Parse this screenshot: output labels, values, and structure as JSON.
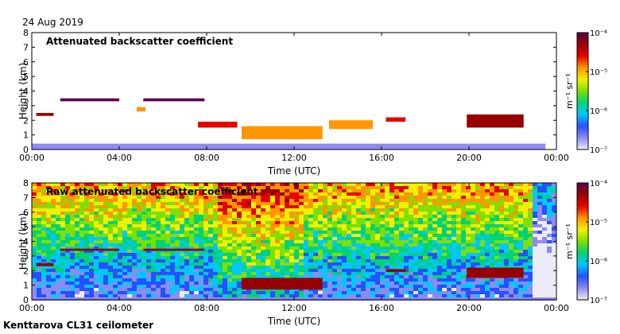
{
  "date_label": "24 Aug 2019",
  "site_label": "Kenttarova CL31 ceilometer",
  "colorbar": {
    "unit_label": "m⁻¹ sr⁻¹",
    "ticks": [
      "10⁻⁷",
      "10⁻⁶",
      "10⁻⁵",
      "10⁻⁴"
    ],
    "colors": [
      "#ececf8",
      "#8c8cf0",
      "#2850ff",
      "#00c8ff",
      "#00d278",
      "#7ee000",
      "#f0f000",
      "#ff9600",
      "#e60000",
      "#960000",
      "#5a0050"
    ]
  },
  "chart_data": [
    {
      "type": "heatmap",
      "title": "Attenuated backscatter coefficient",
      "xlabel": "Time (UTC)",
      "ylabel": "Height (km)",
      "xlim": [
        0,
        24
      ],
      "ylim": [
        0,
        8
      ],
      "x_ticks": [
        "00:00",
        "04:00",
        "08:00",
        "12:00",
        "16:00",
        "20:00",
        "00:00"
      ],
      "y_ticks": [
        "0",
        "1",
        "2",
        "3",
        "4",
        "5",
        "6",
        "7",
        "8"
      ],
      "features": [
        {
          "name": "surface layer",
          "t": [
            0,
            23.5
          ],
          "h": [
            0,
            0.4
          ],
          "level": 0.15
        },
        {
          "name": "cloud layer",
          "t": [
            0.2,
            1.0
          ],
          "h": [
            2.3,
            2.5
          ],
          "level": 0.85
        },
        {
          "name": "cloud layer",
          "t": [
            1.3,
            4.0
          ],
          "h": [
            3.3,
            3.5
          ],
          "level": 0.95
        },
        {
          "name": "cloud layer",
          "t": [
            5.1,
            7.9
          ],
          "h": [
            3.3,
            3.5
          ],
          "level": 0.95
        },
        {
          "name": "cloud layer",
          "t": [
            4.8,
            5.2
          ],
          "h": [
            2.6,
            2.9
          ],
          "level": 0.7
        },
        {
          "name": "low cloud",
          "t": [
            7.6,
            9.4
          ],
          "h": [
            1.5,
            1.9
          ],
          "level": 0.75
        },
        {
          "name": "low cloud",
          "t": [
            9.6,
            13.3
          ],
          "h": [
            0.7,
            1.6
          ],
          "level": 0.7
        },
        {
          "name": "low cloud",
          "t": [
            13.6,
            15.6
          ],
          "h": [
            1.4,
            2.0
          ],
          "level": 0.65
        },
        {
          "name": "cloud layer",
          "t": [
            16.2,
            17.1
          ],
          "h": [
            1.9,
            2.2
          ],
          "level": 0.8
        },
        {
          "name": "cloud layer",
          "t": [
            19.9,
            22.5
          ],
          "h": [
            1.5,
            2.4
          ],
          "level": 0.85
        }
      ]
    },
    {
      "type": "heatmap",
      "title": "Raw attenuated backscatter coefficient",
      "xlabel": "Time (UTC)",
      "ylabel": "Height (km)",
      "xlim": [
        0,
        24
      ],
      "ylim": [
        0,
        8
      ],
      "x_ticks": [
        "00:00",
        "04:00",
        "08:00",
        "12:00",
        "16:00",
        "20:00",
        "00:00"
      ],
      "y_ticks": [
        "0",
        "1",
        "2",
        "3",
        "4",
        "5",
        "6",
        "7",
        "8"
      ],
      "features": [
        {
          "name": "cloud layer",
          "t": [
            0.2,
            1.0
          ],
          "h": [
            2.3,
            2.5
          ],
          "level": 0.9
        },
        {
          "name": "cloud layer",
          "t": [
            1.3,
            4.0
          ],
          "h": [
            3.35,
            3.5
          ],
          "level": 0.9
        },
        {
          "name": "cloud layer",
          "t": [
            5.1,
            7.9
          ],
          "h": [
            3.35,
            3.5
          ],
          "level": 0.9
        },
        {
          "name": "low cloud",
          "t": [
            9.6,
            13.3
          ],
          "h": [
            0.7,
            1.5
          ],
          "level": 0.85
        },
        {
          "name": "cloud layer",
          "t": [
            16.2,
            17.1
          ],
          "h": [
            1.9,
            2.1
          ],
          "level": 0.85
        },
        {
          "name": "cloud layer",
          "t": [
            19.9,
            22.5
          ],
          "h": [
            1.5,
            2.2
          ],
          "level": 0.85
        }
      ]
    }
  ]
}
